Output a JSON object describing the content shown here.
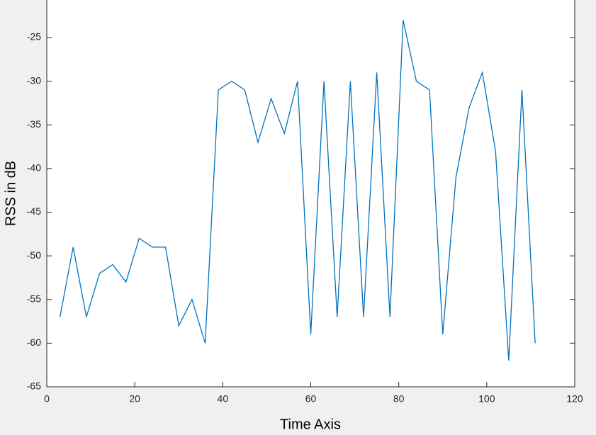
{
  "chart_data": {
    "type": "line",
    "xlabel": "Time Axis",
    "ylabel": "RSS in dB",
    "x": [
      3,
      6,
      9,
      12,
      15,
      18,
      21,
      24,
      27,
      30,
      33,
      36,
      39,
      42,
      45,
      48,
      51,
      54,
      57,
      60,
      63,
      66,
      69,
      72,
      75,
      78,
      81,
      84,
      87,
      90,
      93,
      96,
      99,
      102,
      105,
      108,
      111
    ],
    "series": [
      {
        "color": "#0072bd",
        "values": [
          -57,
          -49,
          -57,
          -52,
          -51,
          -53,
          -48,
          -49,
          -49,
          -58,
          -55,
          -60,
          -31,
          -30,
          -31,
          -37,
          -32,
          -36,
          -30,
          -59,
          -30,
          -57,
          -30,
          -57,
          -29,
          -57,
          -23,
          -30,
          -31,
          -59,
          -41,
          -33,
          -29,
          -38,
          -62,
          -31,
          -60
        ]
      }
    ],
    "xlim": [
      0,
      120
    ],
    "xticks": [
      0,
      20,
      40,
      60,
      80,
      100,
      120
    ],
    "ylim": [
      -65,
      -20
    ],
    "yticks": [
      -65,
      -60,
      -55,
      -50,
      -45,
      -40,
      -35,
      -30,
      -25
    ]
  }
}
